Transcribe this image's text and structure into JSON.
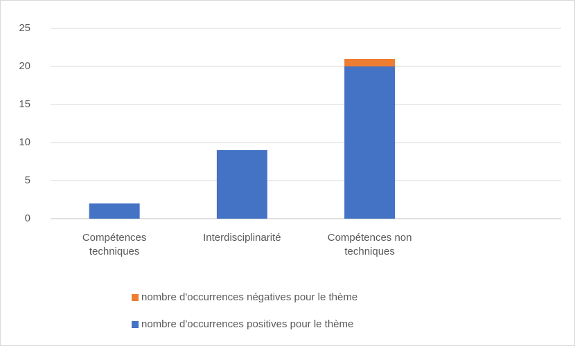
{
  "chart_data": {
    "type": "stacked_bar",
    "categories": [
      "Compétences techniques",
      "Interdisciplinarité",
      "Compétences non techniques",
      null
    ],
    "series": [
      {
        "name": "nombre d'occurrences positives pour le thème",
        "color": "#4472c4",
        "values": [
          2,
          9,
          20,
          null
        ]
      },
      {
        "name": "nombre d'occurrences négatives pour le thème",
        "color": "#ed7d31",
        "values": [
          0,
          0,
          1,
          null
        ]
      }
    ],
    "ylim": [
      0,
      25
    ],
    "yticks": [
      0,
      5,
      10,
      15,
      20,
      25
    ],
    "grid": true,
    "legend": "bottom"
  }
}
